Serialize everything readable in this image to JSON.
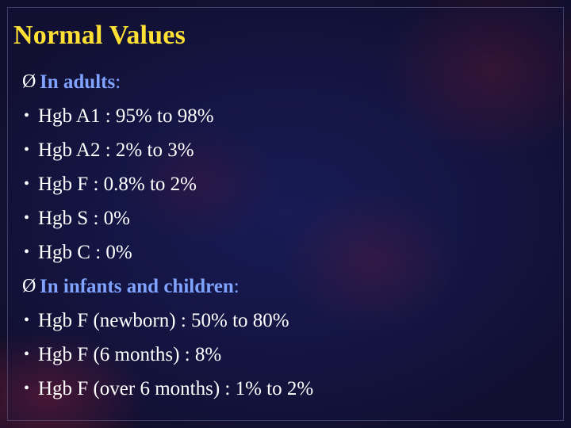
{
  "slide": {
    "title": "Normal Values",
    "sections": [
      {
        "heading": "In adults",
        "items": [
          "Hgb A1 : 95% to 98%",
          "Hgb A2 : 2% to 3%",
          "Hgb F : 0.8% to 2%",
          "Hgb S : 0%",
          "Hgb C : 0%"
        ]
      },
      {
        "heading": "In infants and children",
        "items": [
          "Hgb F (newborn) : 50% to 80%",
          "Hgb F (6 months) : 8%",
          "Hgb F (over 6 months) : 1% to 2%"
        ]
      }
    ]
  },
  "glyphs": {
    "arrow": "Ø",
    "bullet": "•",
    "colon": ":"
  },
  "colors": {
    "title": "#ffe135",
    "heading": "#7fa3ff",
    "text": "#ffffff"
  }
}
